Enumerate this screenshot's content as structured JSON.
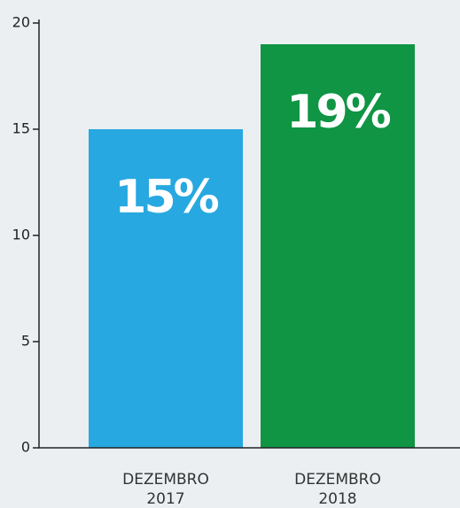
{
  "chart_data": {
    "type": "bar",
    "categories": [
      [
        "DEZEMBRO",
        "2017"
      ],
      [
        "DEZEMBRO",
        "2018"
      ]
    ],
    "series": [
      {
        "colors": [
          "#27a8e0",
          "#0f9543"
        ],
        "values": [
          15,
          19
        ],
        "value_labels": [
          "15%",
          "19%"
        ]
      }
    ],
    "ylim": [
      0,
      20
    ],
    "yticks": [
      0,
      5,
      10,
      15,
      20
    ],
    "grid": false
  }
}
